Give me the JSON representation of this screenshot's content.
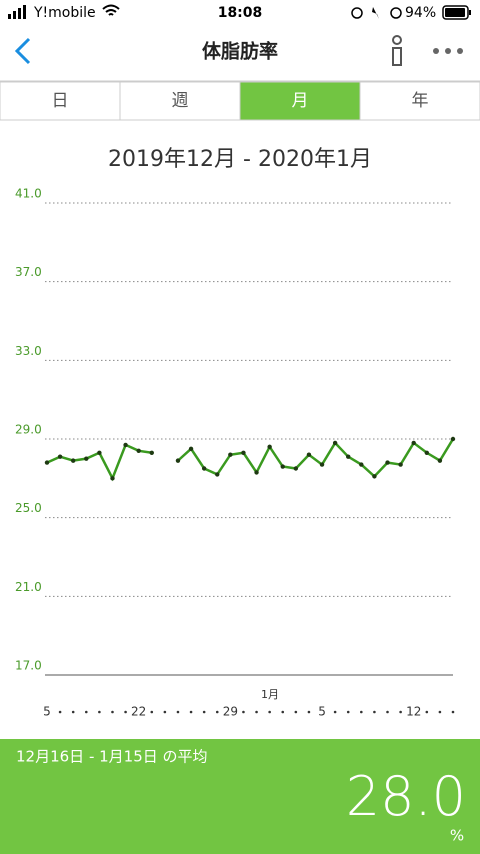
{
  "status_bar": {
    "carrier": "Y!mobile",
    "time": "18:08",
    "battery": "94%"
  },
  "header": {
    "title": "体脂肪率"
  },
  "tabs": [
    "日",
    "週",
    "月",
    "年"
  ],
  "chart_data": {
    "type": "line",
    "title": "2019年12月 - 2020年1月",
    "categories": [
      "5",
      null,
      null,
      null,
      null,
      null,
      null,
      "22",
      null,
      null,
      null,
      null,
      null,
      null,
      "29",
      null,
      null,
      null,
      null,
      null,
      null,
      "5",
      null,
      null,
      null,
      null,
      null,
      null,
      "12",
      null,
      null,
      null
    ],
    "x_annotation": "1月",
    "series": [
      {
        "color": "#3a9a1f",
        "values": [
          27.8,
          28.1,
          27.9,
          28.0,
          28.3,
          27.0,
          28.7,
          28.4,
          28.3,
          null,
          27.9,
          28.5,
          27.5,
          27.2,
          28.2,
          28.3,
          27.3,
          28.6,
          27.6,
          27.5,
          28.2,
          27.7,
          28.8,
          28.1,
          27.7,
          27.1,
          27.8,
          27.7,
          28.8,
          28.3,
          27.9,
          29.0
        ]
      }
    ],
    "ylim": [
      17,
      41
    ],
    "yticks": [
      {
        "value": 17,
        "label": "17.0"
      },
      {
        "value": 21,
        "label": "21.0"
      },
      {
        "value": 25,
        "label": "25.0"
      },
      {
        "value": 29,
        "label": "29.0"
      },
      {
        "value": 33,
        "label": "33.0"
      },
      {
        "value": 37,
        "label": "37.0"
      },
      {
        "value": 41,
        "label": "41.0"
      }
    ],
    "grid": true
  },
  "footer": {
    "period": "12月16日 - 1月15日 の平均",
    "average": "28.0",
    "unit": "%"
  }
}
